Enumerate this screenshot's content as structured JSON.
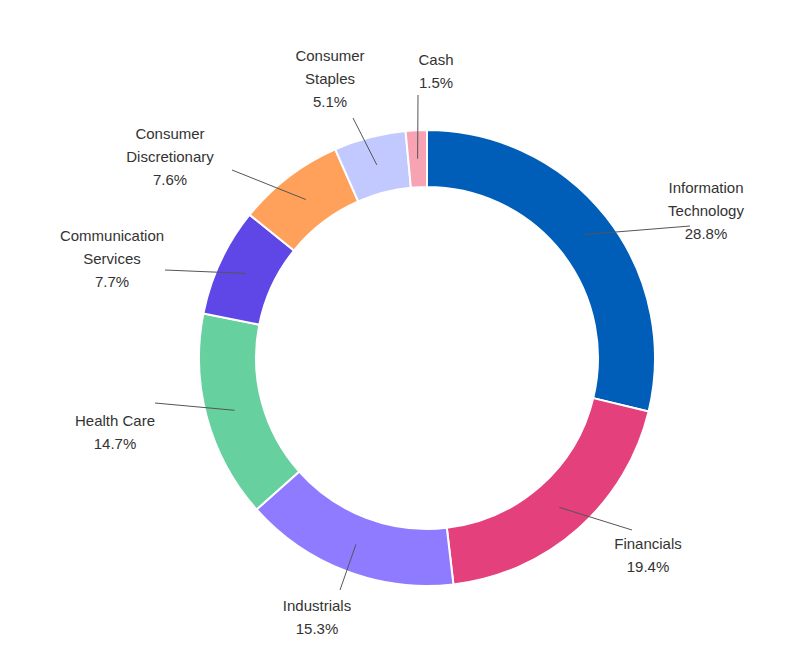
{
  "chart_data": {
    "type": "donut",
    "categories": [
      "Information Technology",
      "Financials",
      "Industrials",
      "Health Care",
      "Communication Services",
      "Consumer Discretionary",
      "Consumer Staples",
      "Cash"
    ],
    "values": [
      28.8,
      19.4,
      15.3,
      14.7,
      7.7,
      7.6,
      5.1,
      1.5
    ],
    "value_labels": [
      "28.8%",
      "19.4%",
      "15.3%",
      "14.7%",
      "7.7%",
      "7.6%",
      "5.1%",
      "1.5%"
    ],
    "colors": [
      "#005eb8",
      "#e4407b",
      "#8f7bff",
      "#66d19e",
      "#5f46e6",
      "#ffa15a",
      "#c2c9ff",
      "#f7a3b3"
    ],
    "data_labels": true
  }
}
